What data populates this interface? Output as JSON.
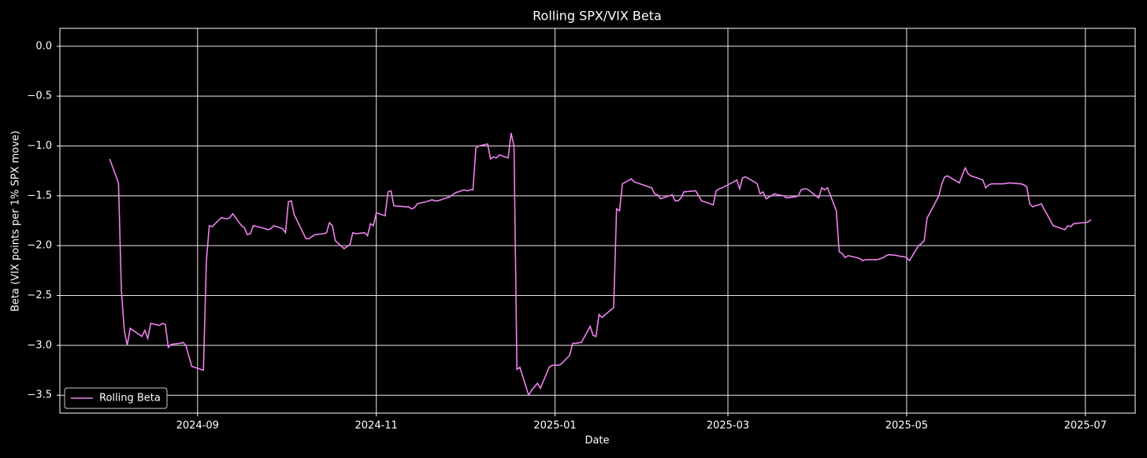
{
  "chart_data": {
    "type": "line",
    "title": "Rolling SPX/VIX Beta",
    "x_label": "Date",
    "y_label": "Beta (VIX points per 1% SPX move)",
    "legend": "lower left",
    "grid": true,
    "xlim": [
      "2024-07-16",
      "2025-07-18"
    ],
    "ylim": [
      -3.68,
      0.18
    ],
    "xticks": [
      {
        "value": "2024-09-01",
        "label": "2024-09"
      },
      {
        "value": "2024-11-01",
        "label": "2024-11"
      },
      {
        "value": "2025-01-01",
        "label": "2025-01"
      },
      {
        "value": "2025-03-01",
        "label": "2025-03"
      },
      {
        "value": "2025-05-01",
        "label": "2025-05"
      },
      {
        "value": "2025-07-01",
        "label": "2025-07"
      }
    ],
    "yticks": [
      {
        "value": 0,
        "label": "0.0"
      },
      {
        "value": -0.5,
        "label": "−0.5"
      },
      {
        "value": -1,
        "label": "−1.0"
      },
      {
        "value": -1.5,
        "label": "−1.5"
      },
      {
        "value": -2,
        "label": "−2.0"
      },
      {
        "value": -2.5,
        "label": "−2.5"
      },
      {
        "value": -3,
        "label": "−3.0"
      },
      {
        "value": -3.5,
        "label": "−3.5"
      }
    ],
    "x": [
      "2024-08-02",
      "2024-08-05",
      "2024-08-06",
      "2024-08-07",
      "2024-08-08",
      "2024-08-09",
      "2024-08-13",
      "2024-08-14",
      "2024-08-15",
      "2024-08-16",
      "2024-08-19",
      "2024-08-20",
      "2024-08-21",
      "2024-08-22",
      "2024-08-23",
      "2024-08-26",
      "2024-08-27",
      "2024-08-28",
      "2024-08-30",
      "2024-09-03",
      "2024-09-04",
      "2024-09-05",
      "2024-09-06",
      "2024-09-09",
      "2024-09-11",
      "2024-09-12",
      "2024-09-13",
      "2024-09-16",
      "2024-09-17",
      "2024-09-18",
      "2024-09-19",
      "2024-09-20",
      "2024-09-23",
      "2024-09-25",
      "2024-09-26",
      "2024-09-27",
      "2024-09-30",
      "2024-10-01",
      "2024-10-02",
      "2024-10-03",
      "2024-10-04",
      "2024-10-08",
      "2024-10-09",
      "2024-10-11",
      "2024-10-14",
      "2024-10-15",
      "2024-10-16",
      "2024-10-17",
      "2024-10-18",
      "2024-10-21",
      "2024-10-23",
      "2024-10-24",
      "2024-10-25",
      "2024-10-28",
      "2024-10-29",
      "2024-10-30",
      "2024-10-31",
      "2024-11-01",
      "2024-11-04",
      "2024-11-05",
      "2024-11-06",
      "2024-11-07",
      "2024-11-11",
      "2024-11-12",
      "2024-11-13",
      "2024-11-14",
      "2024-11-15",
      "2024-11-18",
      "2024-11-20",
      "2024-11-21",
      "2024-11-22",
      "2024-11-26",
      "2024-11-28",
      "2024-12-01",
      "2024-12-02",
      "2024-12-03",
      "2024-12-04",
      "2024-12-05",
      "2024-12-06",
      "2024-12-09",
      "2024-12-10",
      "2024-12-11",
      "2024-12-12",
      "2024-12-13",
      "2024-12-16",
      "2024-12-17",
      "2024-12-18",
      "2024-12-19",
      "2024-12-20",
      "2024-12-23",
      "2024-12-24",
      "2024-12-26",
      "2024-12-27",
      "2024-12-30",
      "2024-12-31",
      "2025-01-02",
      "2025-01-03",
      "2025-01-06",
      "2025-01-07",
      "2025-01-08",
      "2025-01-10",
      "2025-01-13",
      "2025-01-14",
      "2025-01-15",
      "2025-01-16",
      "2025-01-17",
      "2025-01-21",
      "2025-01-22",
      "2025-01-23",
      "2025-01-24",
      "2025-01-27",
      "2025-01-28",
      "2025-01-31",
      "2025-02-03",
      "2025-02-04",
      "2025-02-05",
      "2025-02-06",
      "2025-02-07",
      "2025-02-10",
      "2025-02-11",
      "2025-02-12",
      "2025-02-13",
      "2025-02-14",
      "2025-02-18",
      "2025-02-19",
      "2025-02-20",
      "2025-02-21",
      "2025-02-24",
      "2025-02-25",
      "2025-02-26",
      "2025-02-27",
      "2025-03-03",
      "2025-03-04",
      "2025-03-05",
      "2025-03-06",
      "2025-03-07",
      "2025-03-10",
      "2025-03-11",
      "2025-03-12",
      "2025-03-13",
      "2025-03-14",
      "2025-03-17",
      "2025-03-18",
      "2025-03-20",
      "2025-03-21",
      "2025-03-24",
      "2025-03-25",
      "2025-03-26",
      "2025-03-27",
      "2025-03-28",
      "2025-03-31",
      "2025-04-01",
      "2025-04-02",
      "2025-04-03",
      "2025-04-04",
      "2025-04-07",
      "2025-04-08",
      "2025-04-09",
      "2025-04-10",
      "2025-04-11",
      "2025-04-14",
      "2025-04-15",
      "2025-04-16",
      "2025-04-17",
      "2025-04-21",
      "2025-04-22",
      "2025-04-23",
      "2025-04-24",
      "2025-04-25",
      "2025-04-28",
      "2025-04-29",
      "2025-04-30",
      "2025-05-01",
      "2025-05-02",
      "2025-05-05",
      "2025-05-06",
      "2025-05-07",
      "2025-05-08",
      "2025-05-09",
      "2025-05-12",
      "2025-05-13",
      "2025-05-14",
      "2025-05-15",
      "2025-05-16",
      "2025-05-19",
      "2025-05-20",
      "2025-05-21",
      "2025-05-22",
      "2025-05-23",
      "2025-05-27",
      "2025-05-28",
      "2025-05-29",
      "2025-05-30",
      "2025-06-02",
      "2025-06-03",
      "2025-06-05",
      "2025-06-09",
      "2025-06-10",
      "2025-06-11",
      "2025-06-12",
      "2025-06-13",
      "2025-06-16",
      "2025-06-17",
      "2025-06-18",
      "2025-06-20",
      "2025-06-23",
      "2025-06-24",
      "2025-06-25",
      "2025-06-26",
      "2025-06-27",
      "2025-06-30",
      "2025-07-01",
      "2025-07-02",
      "2025-07-03"
    ],
    "series": [
      {
        "name": "Rolling Beta",
        "color": "#ee82ee",
        "values": [
          -1.13,
          -1.37,
          -2.45,
          -2.85,
          -3.0,
          -2.83,
          -2.91,
          -2.85,
          -2.93,
          -2.78,
          -2.8,
          -2.78,
          -2.79,
          -3.02,
          -2.99,
          -2.98,
          -2.97,
          -3.0,
          -3.21,
          -3.25,
          -2.15,
          -1.8,
          -1.81,
          -1.72,
          -1.73,
          -1.72,
          -1.68,
          -1.8,
          -1.82,
          -1.89,
          -1.88,
          -1.8,
          -1.82,
          -1.84,
          -1.83,
          -1.8,
          -1.83,
          -1.87,
          -1.56,
          -1.55,
          -1.69,
          -1.93,
          -1.93,
          -1.89,
          -1.88,
          -1.87,
          -1.77,
          -1.8,
          -1.95,
          -2.03,
          -1.99,
          -1.87,
          -1.88,
          -1.87,
          -1.9,
          -1.78,
          -1.8,
          -1.67,
          -1.7,
          -1.46,
          -1.45,
          -1.6,
          -1.61,
          -1.61,
          -1.63,
          -1.62,
          -1.58,
          -1.56,
          -1.54,
          -1.55,
          -1.55,
          -1.51,
          -1.47,
          -1.44,
          -1.45,
          -1.44,
          -1.44,
          -1.02,
          -1.0,
          -0.98,
          -1.13,
          -1.11,
          -1.12,
          -1.09,
          -1.12,
          -0.87,
          -1.0,
          -3.24,
          -3.22,
          -3.5,
          -3.45,
          -3.38,
          -3.43,
          -3.22,
          -3.2,
          -3.2,
          -3.19,
          -3.1,
          -2.98,
          -2.98,
          -2.97,
          -2.81,
          -2.9,
          -2.91,
          -2.69,
          -2.72,
          -2.62,
          -1.63,
          -1.65,
          -1.38,
          -1.33,
          -1.36,
          -1.39,
          -1.42,
          -1.48,
          -1.49,
          -1.53,
          -1.52,
          -1.49,
          -1.55,
          -1.55,
          -1.52,
          -1.46,
          -1.45,
          -1.5,
          -1.55,
          -1.56,
          -1.59,
          -1.45,
          -1.43,
          -1.42,
          -1.36,
          -1.34,
          -1.43,
          -1.32,
          -1.31,
          -1.36,
          -1.38,
          -1.48,
          -1.46,
          -1.53,
          -1.48,
          -1.49,
          -1.5,
          -1.52,
          -1.51,
          -1.5,
          -1.44,
          -1.43,
          -1.43,
          -1.5,
          -1.52,
          -1.42,
          -1.44,
          -1.42,
          -1.65,
          -2.06,
          -2.08,
          -2.12,
          -2.1,
          -2.12,
          -2.13,
          -2.15,
          -2.14,
          -2.14,
          -2.13,
          -2.12,
          -2.1,
          -2.09,
          -2.1,
          -2.11,
          -2.11,
          -2.12,
          -2.15,
          -2.0,
          -1.98,
          -1.95,
          -1.72,
          -1.67,
          -1.5,
          -1.38,
          -1.31,
          -1.3,
          -1.32,
          -1.37,
          -1.29,
          -1.22,
          -1.28,
          -1.3,
          -1.34,
          -1.42,
          -1.39,
          -1.38,
          -1.38,
          -1.38,
          -1.37,
          -1.38,
          -1.39,
          -1.41,
          -1.58,
          -1.61,
          -1.58,
          -1.64,
          -1.69,
          -1.8,
          -1.83,
          -1.84,
          -1.8,
          -1.81,
          -1.78,
          -1.77,
          -1.77,
          -1.76,
          -1.74
        ]
      }
    ]
  }
}
